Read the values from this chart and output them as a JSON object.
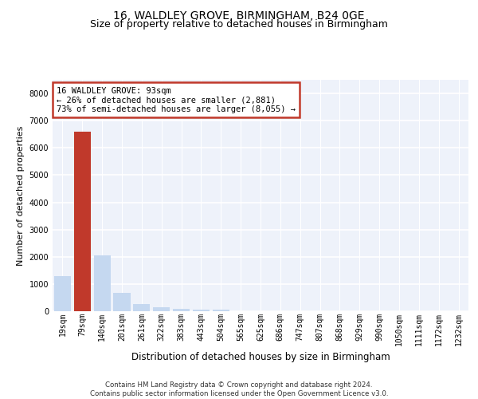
{
  "title1": "16, WALDLEY GROVE, BIRMINGHAM, B24 0GE",
  "title2": "Size of property relative to detached houses in Birmingham",
  "xlabel": "Distribution of detached houses by size in Birmingham",
  "ylabel": "Number of detached properties",
  "footnote1": "Contains HM Land Registry data © Crown copyright and database right 2024.",
  "footnote2": "Contains public sector information licensed under the Open Government Licence v3.0.",
  "bin_labels": [
    "19sqm",
    "79sqm",
    "140sqm",
    "201sqm",
    "261sqm",
    "322sqm",
    "383sqm",
    "443sqm",
    "504sqm",
    "565sqm",
    "625sqm",
    "686sqm",
    "747sqm",
    "807sqm",
    "868sqm",
    "929sqm",
    "990sqm",
    "1050sqm",
    "1111sqm",
    "1172sqm",
    "1232sqm"
  ],
  "bar_values": [
    1300,
    6600,
    2050,
    680,
    270,
    140,
    90,
    55,
    70,
    0,
    0,
    0,
    0,
    0,
    0,
    0,
    0,
    0,
    0,
    0,
    0
  ],
  "highlight_bar_index": 1,
  "normal_bar_color": "#c5d8f0",
  "highlight_bar_color": "#c0392b",
  "property_label": "16 WALDLEY GROVE: 93sqm",
  "pct_smaller": 26,
  "n_smaller": 2881,
  "pct_larger_semi": 73,
  "n_larger_semi": 8055,
  "ylim": [
    0,
    8500
  ],
  "yticks": [
    0,
    1000,
    2000,
    3000,
    4000,
    5000,
    6000,
    7000,
    8000
  ],
  "bg_color": "#eef2fa",
  "grid_color": "#ffffff",
  "title1_fontsize": 10,
  "title2_fontsize": 9,
  "xlabel_fontsize": 8.5,
  "ylabel_fontsize": 8,
  "tick_fontsize": 7,
  "footnote_fontsize": 6.2,
  "annot_fontsize": 7.5
}
